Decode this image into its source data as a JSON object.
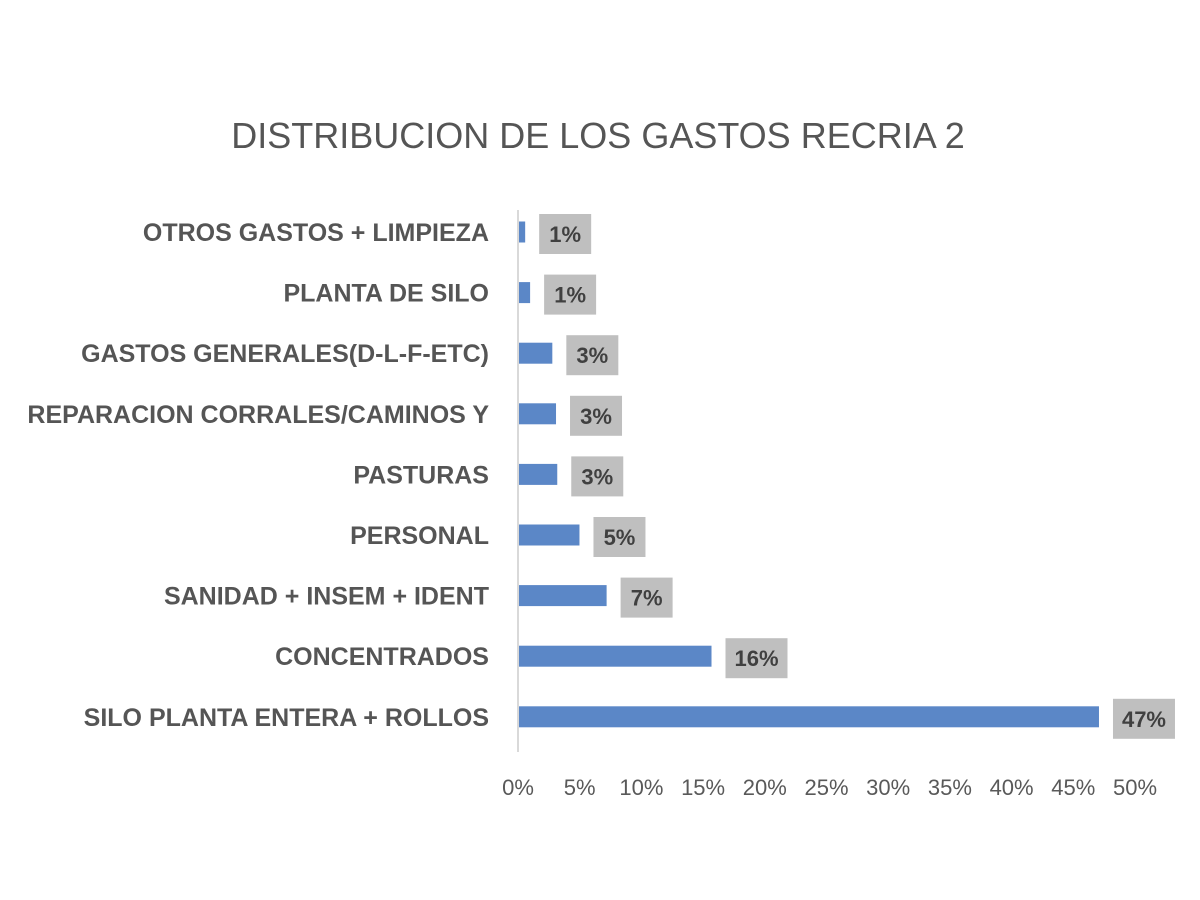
{
  "chart_data": {
    "type": "bar",
    "orientation": "horizontal",
    "title": "DISTRIBUCION DE LOS GASTOS RECRIA 2",
    "xlabel": "",
    "ylabel": "",
    "categories": [
      "OTROS GASTOS + LIMPIEZA",
      "PLANTA DE SILO",
      "GASTOS GENERALES(D-L-F-ETC)",
      "REPARACION CORRALES/CAMINOS Y",
      "PASTURAS",
      "PERSONAL",
      "SANIDAD + INSEM + IDENT",
      "CONCENTRADOS",
      "SILO PLANTA ENTERA + ROLLOS"
    ],
    "values": [
      0.5,
      0.9,
      2.7,
      3.0,
      3.1,
      4.9,
      7.1,
      15.6,
      47.0
    ],
    "data_labels": [
      "1%",
      "1%",
      "3%",
      "3%",
      "3%",
      "5%",
      "7%",
      "16%",
      "47%"
    ],
    "xlim": [
      0,
      50
    ],
    "x_ticks": [
      0,
      5,
      10,
      15,
      20,
      25,
      30,
      35,
      40,
      45,
      50
    ],
    "x_tick_labels": [
      "0%",
      "5%",
      "10%",
      "15%",
      "20%",
      "25%",
      "30%",
      "35%",
      "40%",
      "45%",
      "50%"
    ],
    "grid": false,
    "legend": "none",
    "colors": {
      "bar": "#5B87C7",
      "label_box": "#BFBFBF",
      "axis": "#D9D9D9"
    }
  }
}
